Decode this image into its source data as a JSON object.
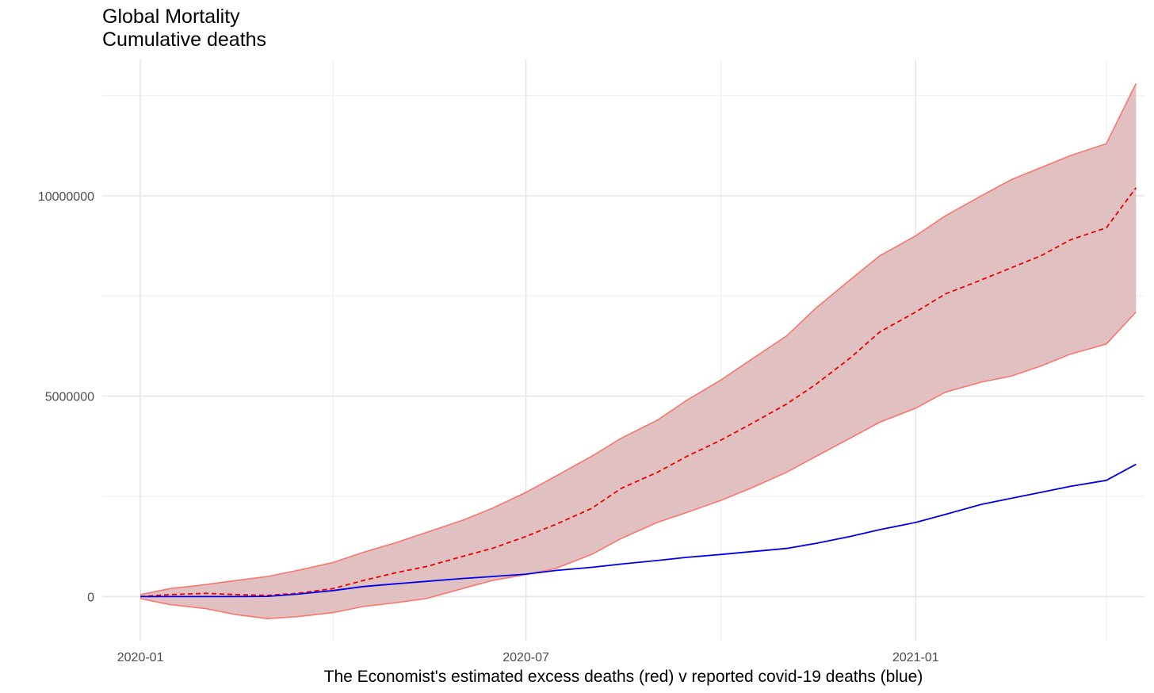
{
  "chart_data": {
    "type": "line",
    "title": "Global Mortality",
    "subtitle": "Cumulative deaths",
    "xlabel": "The Economist's estimated excess deaths (red) v reported covid-19 deaths (blue)",
    "ylabel": "",
    "x_type": "date",
    "xlim": [
      "2019-12-14",
      "2021-04-19"
    ],
    "ylim": [
      -1100000,
      13400000
    ],
    "x_ticks": [
      {
        "date": "2020-01-01",
        "label": "2020-01"
      },
      {
        "date": "2020-07-01",
        "label": "2020-07"
      },
      {
        "date": "2021-01-01",
        "label": "2021-01"
      }
    ],
    "x_minor_ticks": [
      "2020-04-01",
      "2020-10-01",
      "2021-04-01"
    ],
    "y_ticks": [
      {
        "value": 0,
        "label": "0"
      },
      {
        "value": 5000000,
        "label": "5000000"
      },
      {
        "value": 10000000,
        "label": "10000000"
      }
    ],
    "y_minor_ticks": [
      2500000,
      7500000,
      12500000
    ],
    "grid": true,
    "legend": "none",
    "x": [
      "2020-01-01",
      "2020-01-15",
      "2020-02-01",
      "2020-02-15",
      "2020-03-01",
      "2020-03-15",
      "2020-04-01",
      "2020-04-15",
      "2020-05-01",
      "2020-05-15",
      "2020-06-01",
      "2020-06-15",
      "2020-07-01",
      "2020-07-15",
      "2020-08-01",
      "2020-08-15",
      "2020-09-01",
      "2020-09-15",
      "2020-10-01",
      "2020-10-15",
      "2020-11-01",
      "2020-11-15",
      "2020-12-01",
      "2020-12-15",
      "2021-01-01",
      "2021-01-15",
      "2021-02-01",
      "2021-02-15",
      "2021-03-01",
      "2021-03-15",
      "2021-04-01",
      "2021-04-15"
    ],
    "series": [
      {
        "type": "ribbon",
        "lower": [
          -50000,
          -200000,
          -300000,
          -450000,
          -550000,
          -500000,
          -400000,
          -250000,
          -150000,
          -50000,
          200000,
          400000,
          550000,
          700000,
          1050000,
          1450000,
          1850000,
          2100000,
          2400000,
          2700000,
          3100000,
          3500000,
          3950000,
          4350000,
          4700000,
          5100000,
          5350000,
          5500000,
          5750000,
          6050000,
          6300000,
          7100000
        ],
        "upper": [
          50000,
          200000,
          300000,
          400000,
          500000,
          650000,
          850000,
          1100000,
          1350000,
          1600000,
          1900000,
          2200000,
          2600000,
          3000000,
          3500000,
          3950000,
          4400000,
          4900000,
          5400000,
          5900000,
          6500000,
          7200000,
          7900000,
          8500000,
          9000000,
          9500000,
          10000000,
          10400000,
          10700000,
          11000000,
          11300000,
          12800000
        ],
        "color": "#f8766d",
        "fill": "#e0c0c1"
      },
      {
        "type": "line",
        "values": [
          0,
          50000,
          80000,
          50000,
          30000,
          80000,
          200000,
          400000,
          600000,
          750000,
          1000000,
          1200000,
          1500000,
          1800000,
          2200000,
          2700000,
          3100000,
          3500000,
          3900000,
          4300000,
          4800000,
          5300000,
          5950000,
          6600000,
          7100000,
          7550000,
          7900000,
          8200000,
          8500000,
          8900000,
          9200000,
          10200000
        ],
        "color": "#ee0000",
        "dash": true
      },
      {
        "type": "line",
        "values": [
          0,
          0,
          0,
          0,
          5000,
          60000,
          150000,
          250000,
          320000,
          380000,
          450000,
          500000,
          560000,
          650000,
          730000,
          810000,
          900000,
          980000,
          1050000,
          1120000,
          1200000,
          1330000,
          1500000,
          1670000,
          1850000,
          2050000,
          2300000,
          2450000,
          2600000,
          2750000,
          2900000,
          3300000
        ],
        "color": "#0000ee",
        "dash": false
      }
    ]
  }
}
